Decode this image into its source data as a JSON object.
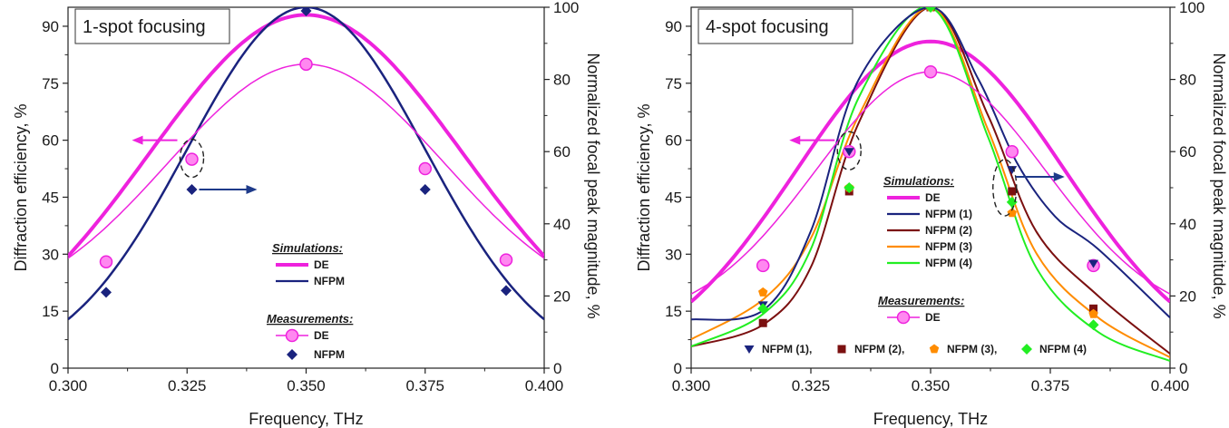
{
  "colors": {
    "de": "#ee22dd",
    "de_light": "#ff88f0",
    "nfpm1": "#1a237e",
    "nfpm2": "#7b1010",
    "nfpm3": "#ff8c00",
    "nfpm4": "#22ee22",
    "arrow": "#ee22dd",
    "arrow_blue": "#1e3a8a"
  },
  "chart_data": [
    {
      "type": "line",
      "title": "1-spot focusing",
      "xlabel": "Frequency, THz",
      "ylabel": "Diffraction efficiency, %",
      "y2label": "Normalized focal peak magnitude, %",
      "xlim": [
        0.3,
        0.4
      ],
      "ylim": [
        0,
        95
      ],
      "y2lim": [
        0,
        100
      ],
      "x_ticks": [
        "0.300",
        "0.325",
        "0.350",
        "0.375",
        "0.400"
      ],
      "y_ticks": [
        "0",
        "15",
        "30",
        "45",
        "60",
        "75",
        "90"
      ],
      "y2_ticks": [
        "0",
        "20",
        "40",
        "60",
        "80",
        "100"
      ],
      "legend_simulations_title": "Simulations:",
      "legend_simulations": [
        "DE",
        "NFPM"
      ],
      "legend_measurements_title": "Measurements:",
      "legend_measurements": [
        "DE",
        "NFPM"
      ],
      "simulations": {
        "de": {
          "peak": 93,
          "center": 0.35,
          "sigma": 0.033
        },
        "nfpm": {
          "peak": 100,
          "center": 0.35,
          "sigma": 0.025
        }
      },
      "measurements": {
        "de": [
          [
            0.308,
            28
          ],
          [
            0.326,
            55
          ],
          [
            0.35,
            80
          ],
          [
            0.375,
            52.5
          ],
          [
            0.392,
            28.5
          ]
        ],
        "de_fit": {
          "peak": 80,
          "center": 0.35,
          "sigma": 0.029,
          "base": 14
        },
        "nfpm": [
          [
            0.308,
            21
          ],
          [
            0.326,
            49.5
          ],
          [
            0.35,
            99
          ],
          [
            0.375,
            49.5
          ],
          [
            0.392,
            21.5
          ]
        ]
      },
      "annotations": {
        "circled_point": [
          0.326,
          55
        ],
        "arrow_left_at_y": 60,
        "arrow_right_at_y2": 49.5
      }
    },
    {
      "type": "line",
      "title": "4-spot focusing",
      "xlabel": "Frequency, THz",
      "ylabel": "Diffraction efficiency, %",
      "y2label": "Normalized focal peak magnitude, %",
      "xlim": [
        0.3,
        0.4
      ],
      "ylim": [
        0,
        95
      ],
      "y2lim": [
        0,
        100
      ],
      "x_ticks": [
        "0.300",
        "0.325",
        "0.350",
        "0.375",
        "0.400"
      ],
      "y_ticks": [
        "0",
        "15",
        "30",
        "45",
        "60",
        "75",
        "90"
      ],
      "y2_ticks": [
        "0",
        "20",
        "40",
        "60",
        "80",
        "100"
      ],
      "legend_simulations_title": "Simulations:",
      "legend_simulations": [
        "DE",
        "NFPM (1)",
        "NFPM (2)",
        "NFPM (3)",
        "NFPM (4)"
      ],
      "legend_measurements_title": "Measurements:",
      "legend_measurements": [
        "DE"
      ],
      "bottom_legend": [
        "NFPM (1),",
        "NFPM (2),",
        "NFPM (3),",
        "NFPM (4)"
      ],
      "simulations": {
        "de": {
          "peak": 86,
          "center": 0.35,
          "sigma": 0.028
        },
        "nfpm1": [
          [
            0.3,
            13.5
          ],
          [
            0.315,
            16
          ],
          [
            0.325,
            38
          ],
          [
            0.335,
            80
          ],
          [
            0.35,
            100
          ],
          [
            0.36,
            80
          ],
          [
            0.368,
            57
          ],
          [
            0.376,
            42
          ],
          [
            0.385,
            33
          ],
          [
            0.4,
            14
          ]
        ],
        "nfpm2": [
          [
            0.3,
            6
          ],
          [
            0.315,
            12
          ],
          [
            0.325,
            28
          ],
          [
            0.335,
            68
          ],
          [
            0.35,
            100
          ],
          [
            0.362,
            70
          ],
          [
            0.372,
            38
          ],
          [
            0.385,
            20
          ],
          [
            0.4,
            4
          ]
        ],
        "nfpm3": [
          [
            0.3,
            8
          ],
          [
            0.315,
            19
          ],
          [
            0.325,
            36
          ],
          [
            0.335,
            70
          ],
          [
            0.35,
            100
          ],
          [
            0.362,
            66
          ],
          [
            0.372,
            32
          ],
          [
            0.385,
            14
          ],
          [
            0.4,
            3
          ]
        ],
        "nfpm4": [
          [
            0.3,
            6
          ],
          [
            0.315,
            15
          ],
          [
            0.325,
            33
          ],
          [
            0.335,
            75
          ],
          [
            0.35,
            100
          ],
          [
            0.362,
            64
          ],
          [
            0.372,
            28
          ],
          [
            0.385,
            10
          ],
          [
            0.4,
            2
          ]
        ]
      },
      "measurements": {
        "de": [
          [
            0.315,
            27
          ],
          [
            0.333,
            57
          ],
          [
            0.35,
            78
          ],
          [
            0.367,
            57
          ],
          [
            0.384,
            27
          ]
        ],
        "de_fit": {
          "peak": 78,
          "center": 0.35,
          "sigma": 0.024,
          "base": 12
        },
        "nfpm1": [
          [
            0.315,
            17.5
          ],
          [
            0.333,
            60
          ],
          [
            0.35,
            100
          ],
          [
            0.367,
            55
          ],
          [
            0.384,
            29
          ]
        ],
        "nfpm2": [
          [
            0.315,
            12.5
          ],
          [
            0.333,
            49
          ],
          [
            0.35,
            100
          ],
          [
            0.367,
            49
          ],
          [
            0.384,
            16.5
          ]
        ],
        "nfpm3": [
          [
            0.315,
            21
          ],
          [
            0.333,
            50
          ],
          [
            0.35,
            100
          ],
          [
            0.367,
            43
          ],
          [
            0.384,
            15
          ]
        ],
        "nfpm4": [
          [
            0.315,
            16.5
          ],
          [
            0.333,
            50
          ],
          [
            0.35,
            100
          ],
          [
            0.367,
            46
          ],
          [
            0.384,
            12
          ]
        ]
      },
      "annotations": {
        "circled_point": [
          0.333,
          57
        ],
        "arrow_left_at_y": 60,
        "circled_right_x": 0.367,
        "arrow_right_at_y2": 53
      }
    }
  ]
}
